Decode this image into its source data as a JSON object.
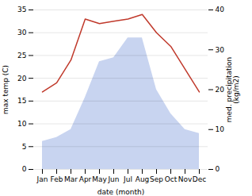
{
  "chart_data": {
    "type": "line",
    "xlabel": "date (month)",
    "ylabel": "max temp (C)",
    "y2label": "med. precipitation\n(kg/m2)",
    "categories": [
      "Jan",
      "Feb",
      "Mar",
      "Apr",
      "May",
      "Jun",
      "Jul",
      "Aug",
      "Sep",
      "Oct",
      "Nov",
      "Dec"
    ],
    "series": [
      {
        "type": "area",
        "axis": "y2",
        "color": "#c8d4f0",
        "values": [
          7,
          8,
          10,
          18,
          27,
          28,
          33,
          33,
          20,
          14,
          10,
          9
        ]
      },
      {
        "type": "line",
        "color": "#c0392b",
        "values": [
          17,
          19,
          24,
          33,
          32,
          32.5,
          33,
          34,
          30,
          27,
          22,
          17
        ]
      }
    ],
    "ylim": [
      0,
      35
    ],
    "yticks": [
      0,
      5,
      10,
      15,
      20,
      25,
      30,
      35
    ],
    "y2lim": [
      0,
      40
    ],
    "y2ticks": [
      0,
      10,
      20,
      30,
      40
    ],
    "grid": true
  }
}
